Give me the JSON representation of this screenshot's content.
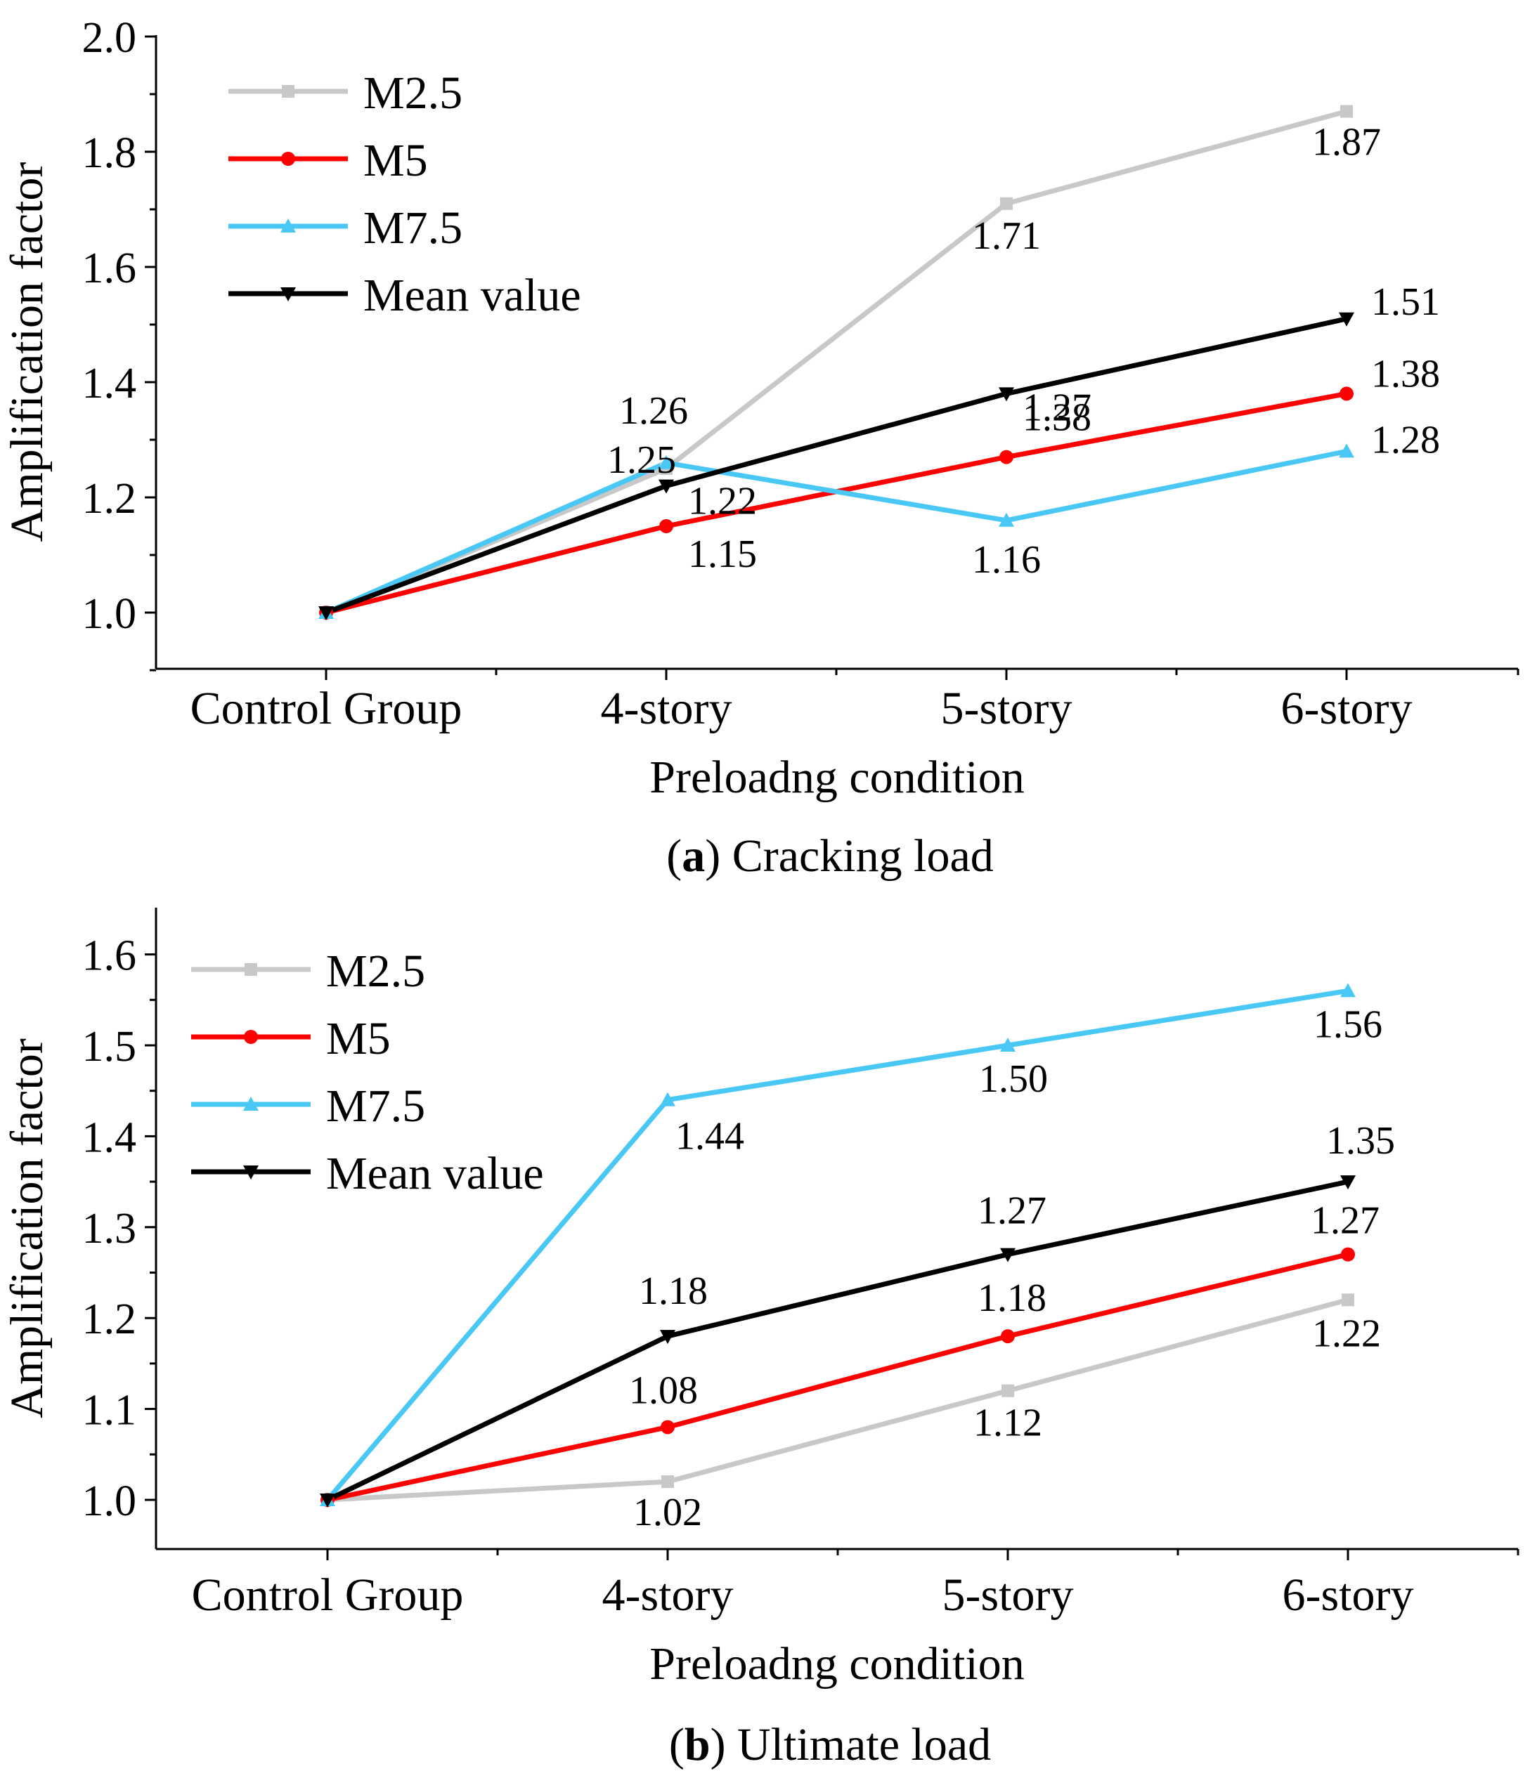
{
  "chart_data": [
    {
      "type": "line",
      "panel_id": "a",
      "caption_label": "a",
      "caption_text": " Cracking load",
      "categories": [
        "Control Group",
        "4-story",
        "5-story",
        "6-story"
      ],
      "xlabel": "Preloadng condition",
      "ylabel": "Amplification factor",
      "ylim": [
        0.9,
        2.0
      ],
      "yticks": [
        "1.0",
        "1.2",
        "1.4",
        "1.6",
        "1.8",
        "2.0"
      ],
      "legend_position": "top-left",
      "series": [
        {
          "name": "M2.5",
          "color": "#c8c8c8",
          "marker": "square",
          "values": [
            1.0,
            1.25,
            1.71,
            1.87
          ],
          "labels": [
            "",
            "1.25",
            "1.71",
            "1.87"
          ]
        },
        {
          "name": "M5",
          "color": "#ff0000",
          "marker": "circle",
          "values": [
            1.0,
            1.15,
            1.27,
            1.38
          ],
          "labels": [
            "",
            "1.15",
            "1.27",
            "1.38"
          ]
        },
        {
          "name": "M7.5",
          "color": "#49c8f5",
          "marker": "triangle-up",
          "values": [
            1.0,
            1.26,
            1.16,
            1.28
          ],
          "labels": [
            "",
            "1.26",
            "1.16",
            "1.28"
          ]
        },
        {
          "name": "Mean value",
          "color": "#000000",
          "marker": "triangle-down",
          "values": [
            1.0,
            1.22,
            1.38,
            1.51
          ],
          "labels": [
            "",
            "1.22",
            "1.38",
            "1.51"
          ]
        }
      ]
    },
    {
      "type": "line",
      "panel_id": "b",
      "caption_label": "b",
      "caption_text": " Ultimate load",
      "categories": [
        "Control Group",
        "4-story",
        "5-story",
        "6-story"
      ],
      "xlabel": "Preloadng condition",
      "ylabel": "Amplification factor",
      "ylim": [
        0.96,
        1.65
      ],
      "yticks": [
        "1.0",
        "1.1",
        "1.2",
        "1.3",
        "1.4",
        "1.5",
        "1.6"
      ],
      "legend_position": "top-left",
      "series": [
        {
          "name": "M2.5",
          "color": "#c8c8c8",
          "marker": "square",
          "values": [
            1.0,
            1.02,
            1.12,
            1.22
          ],
          "labels": [
            "",
            "1.02",
            "1.12",
            "1.22"
          ]
        },
        {
          "name": "M5",
          "color": "#ff0000",
          "marker": "circle",
          "values": [
            1.0,
            1.08,
            1.18,
            1.27
          ],
          "labels": [
            "",
            "1.08",
            "1.18",
            "1.27"
          ]
        },
        {
          "name": "M7.5",
          "color": "#49c8f5",
          "marker": "triangle-up",
          "values": [
            1.0,
            1.44,
            1.5,
            1.56
          ],
          "labels": [
            "",
            "1.44",
            "1.50",
            "1.56"
          ]
        },
        {
          "name": "Mean value",
          "color": "#000000",
          "marker": "triangle-down",
          "values": [
            1.0,
            1.18,
            1.27,
            1.35
          ],
          "labels": [
            "",
            "1.18",
            "1.27",
            "1.35"
          ]
        }
      ]
    }
  ]
}
